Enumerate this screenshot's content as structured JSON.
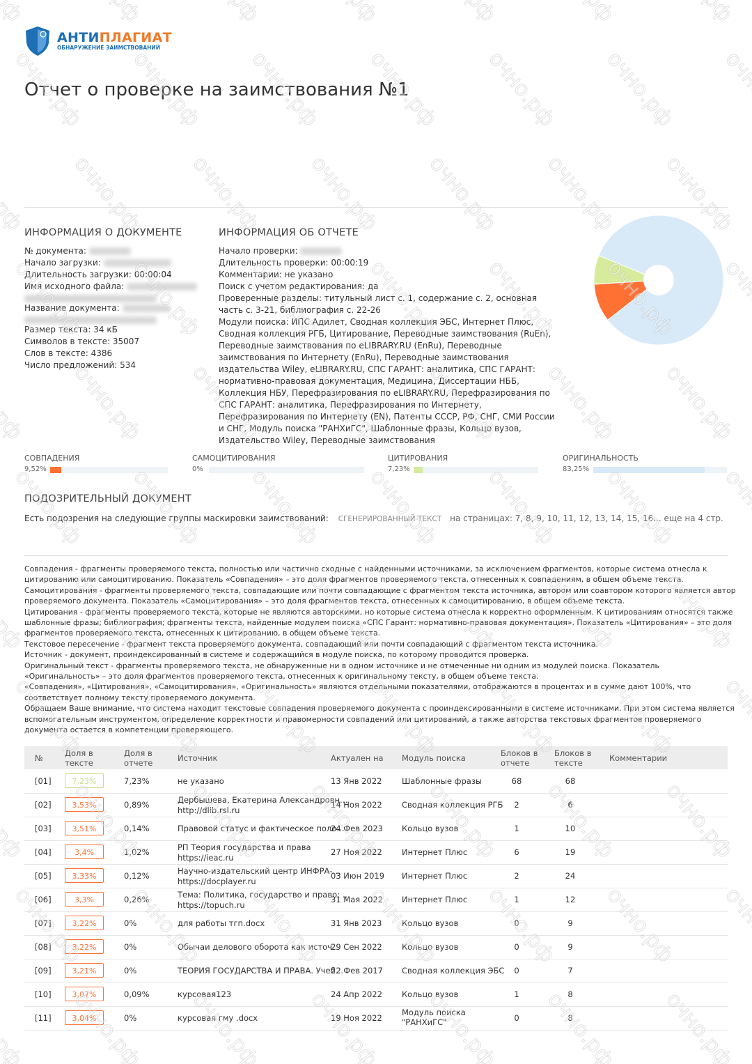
{
  "logo": {
    "brand_a": "АНТИ",
    "brand_b": "ПЛАГИАТ",
    "tagline": "ОБНАРУЖЕНИЕ ЗАИМСТВОВАНИЙ"
  },
  "watermark": "очно.рф",
  "title": "Отчет о проверке на заимствования №1",
  "doc_info": {
    "heading": "ИНФОРМАЦИЯ О ДОКУМЕНТЕ",
    "fields": [
      {
        "label": "№ документа:"
      },
      {
        "label": "Начало загрузки:"
      },
      {
        "label": "Длительность загрузки:",
        "value": "00:00:04"
      },
      {
        "label": "Имя исходного файла:"
      },
      {
        "label": "Название документа:"
      },
      {
        "label": "Размер текста:",
        "value": "34 кБ"
      },
      {
        "label": "Символов в тексте:",
        "value": "35007"
      },
      {
        "label": "Слов в тексте:",
        "value": "4386"
      },
      {
        "label": "Число предложений:",
        "value": "534"
      }
    ]
  },
  "report_info": {
    "heading": "ИНФОРМАЦИЯ ОБ ОТЧЕТЕ",
    "fields": [
      {
        "label": "Начало проверки:"
      },
      {
        "label": "Длительность проверки:",
        "value": "00:00:19"
      },
      {
        "label": "Комментарии:",
        "value": "не указано"
      },
      {
        "label": "Поиск с учетом редактирования:",
        "value": "да"
      },
      {
        "label": "Проверенные разделы:",
        "value": "титульный лист с. 1, содержание с. 2, основная часть с. 3-21, библиография с. 22-26"
      },
      {
        "label": "Модули поиска:",
        "value": "ИПС Адилет, Сводная коллекция ЭБС, Интернет Плюс, Сводная коллекция РГБ, Цитирование, Переводные заимствования (RuEn), Переводные заимствования по eLIBRARY.RU (EnRu), Переводные заимствования по Интернету (EnRu), Переводные заимствования издательства Wiley, eLIBRARY.RU, СПС ГАРАНТ: аналитика, СПС ГАРАНТ: нормативно-правовая документация, Медицина, Диссертации НББ, Коллекция НБУ, Перефразирования по eLIBRARY.RU, Перефразирования по СПС ГАРАНТ: аналитика, Перефразирования по Интернету, Перефразирования по Интернету (EN), Патенты СССР, РФ, СНГ, СМИ России и СНГ, Модуль поиска \"РАНХиГС\", Шаблонные фразы, Кольцо вузов, Издательство Wiley, Переводные заимствования"
      }
    ]
  },
  "chart_data": {
    "type": "pie",
    "categories": [
      "СОВПАДЕНИЯ",
      "САМОЦИТИРОВАНИЯ",
      "ЦИТИРОВАНИЯ",
      "ОРИГИНАЛЬНОСТЬ"
    ],
    "values": [
      9.52,
      0,
      7.23,
      83.25
    ],
    "value_labels": [
      "9,52%",
      "0%",
      "7,23%",
      "83,25%"
    ],
    "colors": [
      "#ff7033",
      "#b9c7d6",
      "#d6eb9c",
      "#d8e9f8"
    ]
  },
  "suspicious": {
    "heading": "ПОДОЗРИТЕЛЬНЫЙ ДОКУМЕНТ",
    "text": "Есть подозрения на следующие группы маскировки заимствований:",
    "tag": "СГЕНЕРИРОВАННЫЙ ТЕКСТ",
    "pages": "на страницах: 7, 8, 9, 10, 11, 12, 13, 14, 15, 16... еще на 4 стр."
  },
  "definitions": [
    "Совпадения - фрагменты проверяемого текста, полностью или частично сходные с найденными источниками, за исключением фрагментов, которые система отнесла к цитированию или самоцитированию. Показатель «Совпадения» – это доля фрагментов проверяемого текста, отнесенных к совпадениям, в общем объеме текста.",
    "Самоцитирования - фрагменты проверяемого текста, совпадающие или почти совпадающие с фрагментом текста источника, автором или соавтором которого является автор проверяемого документа. Показатель «Самоцитирования» – это доля фрагментов текста, отнесенных к самоцитированию, в общем объеме текста.",
    "Цитирования - фрагменты проверяемого текста, которые не являются авторскими, но которые система отнесла к корректно оформленным. К цитированиям относятся также шаблонные фразы; библиография; фрагменты текста, найденные модулем поиска «СПС Гарант: нормативно-правовая документация». Показатель «Цитирования» – это доля фрагментов проверяемого текста, отнесенных к цитированию, в общем объеме текста.",
    "Текстовое пересечение - фрагмент текста проверяемого документа, совпадающий или почти совпадающий с фрагментом текста источника.",
    "Источник - документ, проиндексированный в системе и содержащийся в модуле поиска, по которому проводится проверка.",
    "Оригинальный текст - фрагменты проверяемого текста, не обнаруженные ни в одном источнике и не отмеченные ни одним из модулей поиска. Показатель «Оригинальность» – это доля фрагментов проверяемого текста, отнесенных к оригинальному тексту, в общем объеме текста.",
    "«Совпадения», «Цитирования», «Самоцитирования», «Оригинальность» являются отдельными показателями, отображаются в процентах и в сумме дают 100%, что соответствует полному тексту проверяемого документа.",
    "Обращаем Ваше внимание, что система находит текстовые совпадения проверяемого документа с проиндексированными в системе источниками. При этом система является вспомогательным инструментом, определение корректности и правомерности совпадений или цитирований, а также авторства текстовых фрагментов проверяемого документа остается в компетенции проверяющего."
  ],
  "table": {
    "headers": [
      "№",
      "Доля в тексте",
      "Доля в отчете",
      "Источник",
      "Актуален на",
      "Модуль поиска",
      "Блоков в отчете",
      "Блоков в тексте",
      "Комментарии"
    ],
    "rows": [
      {
        "num": "[01]",
        "share_text": "7,23%",
        "color": "#c8dc8a",
        "share_report": "7,23%",
        "source": "не указано",
        "date": "13 Янв 2022",
        "module": "Шаблонные фразы",
        "blocks_report": 68,
        "blocks_text": 68
      },
      {
        "num": "[02]",
        "share_text": "3,53%",
        "color": "#ff7033",
        "share_report": "0,89%",
        "source": "Дербышева, Екатерина Александровн…",
        "link": "http://dlib.rsl.ru",
        "date": "14 Ноя 2022",
        "module": "Сводная коллекция РГБ",
        "blocks_report": 2,
        "blocks_text": 6
      },
      {
        "num": "[03]",
        "share_text": "3,51%",
        "color": "#ff7033",
        "share_report": "0,14%",
        "source": "Правовой статус и фактическое поло…",
        "date": "24 Фев 2023",
        "module": "Кольцо вузов",
        "blocks_report": 1,
        "blocks_text": 10
      },
      {
        "num": "[04]",
        "share_text": "3,4%",
        "color": "#ff7033",
        "share_report": "1,02%",
        "source": "РП Теория государства и права",
        "link": "https://ieac.ru",
        "date": "27 Ноя 2022",
        "module": "Интернет Плюс",
        "blocks_report": 6,
        "blocks_text": 19
      },
      {
        "num": "[05]",
        "share_text": "3,33%",
        "color": "#ff7033",
        "share_report": "0,12%",
        "source": "Научно-издательский центр ИНФРА-…",
        "link": "https://docplayer.ru",
        "date": "03 Июн 2019",
        "module": "Интернет Плюс",
        "blocks_report": 2,
        "blocks_text": 24
      },
      {
        "num": "[06]",
        "share_text": "3,3%",
        "color": "#ff7033",
        "share_report": "0,26%",
        "source": "Тема: Политика, государство и право: …",
        "link": "https://topuch.ru",
        "date": "31 Мая 2022",
        "module": "Интернет Плюс",
        "blocks_report": 1,
        "blocks_text": 12
      },
      {
        "num": "[07]",
        "share_text": "3,22%",
        "color": "#ff7033",
        "share_report": "0%",
        "source": "для работы тгп.docx",
        "date": "31 Янв 2023",
        "module": "Кольцо вузов",
        "blocks_report": 0,
        "blocks_text": 9
      },
      {
        "num": "[08]",
        "share_text": "3,22%",
        "color": "#ff7033",
        "share_report": "0%",
        "source": "Обычаи делового оборота как источ…",
        "date": "29 Сен 2022",
        "module": "Кольцо вузов",
        "blocks_report": 0,
        "blocks_text": 9
      },
      {
        "num": "[09]",
        "share_text": "3,21%",
        "color": "#ff7033",
        "share_report": "0%",
        "source": "ТЕОРИЯ ГОСУДАРСТВА И ПРАВА. Учеб…",
        "date": "22 Фев 2017",
        "module": "Сводная коллекция ЭБС",
        "blocks_report": 0,
        "blocks_text": 7
      },
      {
        "num": "[10]",
        "share_text": "3,07%",
        "color": "#ff7033",
        "share_report": "0,09%",
        "source": "курсовая123",
        "date": "24 Апр 2022",
        "module": "Кольцо вузов",
        "blocks_report": 1,
        "blocks_text": 8
      },
      {
        "num": "[11]",
        "share_text": "3,04%",
        "color": "#ff7033",
        "share_report": "0%",
        "source": "курсовая гму .docx",
        "date": "19 Ноя 2022",
        "module": "Модуль поиска \"РАНХиГС\"",
        "blocks_report": 0,
        "blocks_text": 8
      }
    ]
  }
}
